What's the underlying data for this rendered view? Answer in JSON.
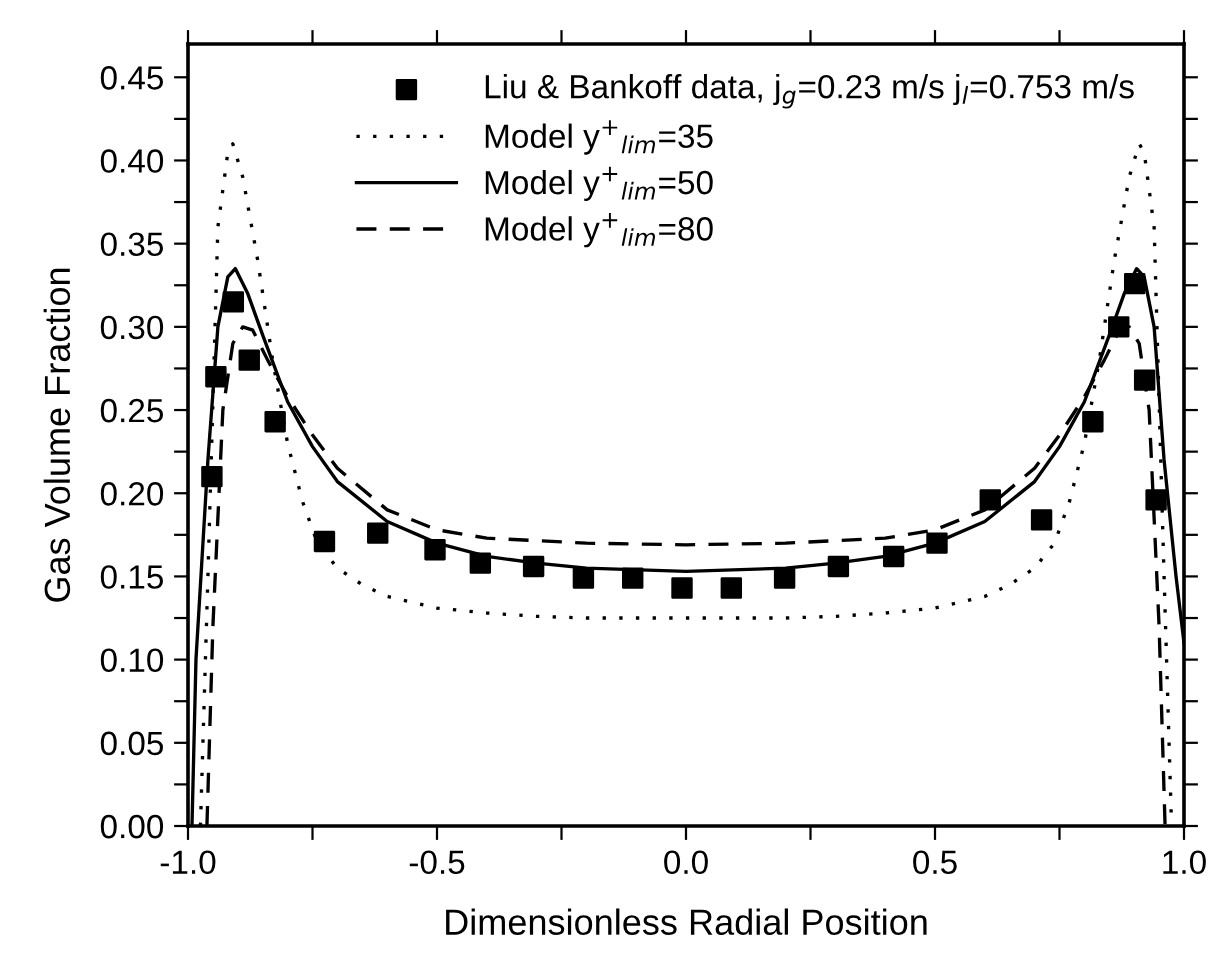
{
  "chart_data": {
    "type": "scatter",
    "xlabel": "Dimensionless Radial Position",
    "ylabel": "Gas Volume Fraction",
    "xlim": [
      -1.0,
      1.0
    ],
    "ylim": [
      0.0,
      0.47
    ],
    "xticks": [
      {
        "value": -1.0,
        "label": "-1.0"
      },
      {
        "value": -0.75,
        "label": null
      },
      {
        "value": -0.5,
        "label": "-0.5"
      },
      {
        "value": -0.25,
        "label": null
      },
      {
        "value": 0.0,
        "label": "0.0"
      },
      {
        "value": 0.25,
        "label": null
      },
      {
        "value": 0.5,
        "label": "0.5"
      },
      {
        "value": 0.75,
        "label": null
      },
      {
        "value": 1.0,
        "label": "1.0"
      }
    ],
    "yticks": [
      {
        "value": 0.0,
        "label": "0.00"
      },
      {
        "value": 0.025,
        "label": null
      },
      {
        "value": 0.05,
        "label": "0.05"
      },
      {
        "value": 0.075,
        "label": null
      },
      {
        "value": 0.1,
        "label": "0.10"
      },
      {
        "value": 0.125,
        "label": null
      },
      {
        "value": 0.15,
        "label": "0.15"
      },
      {
        "value": 0.175,
        "label": null
      },
      {
        "value": 0.2,
        "label": "0.20"
      },
      {
        "value": 0.225,
        "label": null
      },
      {
        "value": 0.25,
        "label": "0.25"
      },
      {
        "value": 0.275,
        "label": null
      },
      {
        "value": 0.3,
        "label": "0.30"
      },
      {
        "value": 0.325,
        "label": null
      },
      {
        "value": 0.35,
        "label": "0.35"
      },
      {
        "value": 0.375,
        "label": null
      },
      {
        "value": 0.4,
        "label": "0.40"
      },
      {
        "value": 0.425,
        "label": null
      },
      {
        "value": 0.45,
        "label": "0.45"
      }
    ],
    "grid": false,
    "legend": "top",
    "series": [
      {
        "name": "Liu & Bankoff data, j$_{g}$=0.23 m/s j$_{l}$=0.753 m/s",
        "marker": "square",
        "color": "#000000",
        "x": [
          -0.952,
          -0.944,
          -0.909,
          -0.877,
          -0.825,
          -0.726,
          -0.619,
          -0.504,
          -0.413,
          -0.306,
          -0.206,
          -0.107,
          -0.008,
          0.091,
          0.198,
          0.306,
          0.417,
          0.504,
          0.611,
          0.714,
          0.817,
          0.869,
          0.901,
          0.921,
          0.944
        ],
        "values": [
          0.21,
          0.27,
          0.315,
          0.28,
          0.243,
          0.171,
          0.176,
          0.166,
          0.158,
          0.156,
          0.149,
          0.149,
          0.143,
          0.143,
          0.149,
          0.156,
          0.162,
          0.17,
          0.196,
          0.184,
          0.243,
          0.3,
          0.326,
          0.268,
          0.196
        ]
      },
      {
        "name": "Model y$^{+}$$_{lim}$=35",
        "type": "line",
        "line_style": "dotted",
        "marker": "none",
        "color": "#000000",
        "x": [
          -0.975,
          -0.96,
          -0.94,
          -0.92,
          -0.91,
          -0.89,
          -0.86,
          -0.83,
          -0.8,
          -0.77,
          -0.74,
          -0.7,
          -0.65,
          -0.6,
          -0.5,
          -0.4,
          -0.3,
          -0.2,
          0.0,
          0.2,
          0.3,
          0.4,
          0.5,
          0.6,
          0.65,
          0.7,
          0.74,
          0.77,
          0.8,
          0.83,
          0.86,
          0.89,
          0.91,
          0.92,
          0.94,
          0.96,
          0.975
        ],
        "values": [
          0.0,
          0.15,
          0.36,
          0.405,
          0.41,
          0.39,
          0.34,
          0.28,
          0.23,
          0.195,
          0.17,
          0.155,
          0.145,
          0.138,
          0.131,
          0.128,
          0.126,
          0.125,
          0.125,
          0.125,
          0.126,
          0.128,
          0.131,
          0.138,
          0.145,
          0.155,
          0.17,
          0.195,
          0.23,
          0.28,
          0.34,
          0.39,
          0.41,
          0.405,
          0.36,
          0.15,
          0.0
        ]
      },
      {
        "name": "Model y$^{+}$$_{lim}$=50",
        "type": "line",
        "line_style": "solid",
        "marker": "none",
        "color": "#000000",
        "x": [
          -0.992,
          -0.984,
          -0.96,
          -0.94,
          -0.92,
          -0.905,
          -0.88,
          -0.85,
          -0.8,
          -0.75,
          -0.7,
          -0.6,
          -0.5,
          -0.4,
          -0.3,
          -0.2,
          0.0,
          0.2,
          0.3,
          0.4,
          0.5,
          0.6,
          0.7,
          0.75,
          0.8,
          0.85,
          0.88,
          0.905,
          0.92,
          0.94,
          0.96,
          0.984,
          1.0
        ],
        "values": [
          0.0,
          0.1,
          0.22,
          0.3,
          0.33,
          0.335,
          0.32,
          0.295,
          0.255,
          0.228,
          0.207,
          0.183,
          0.17,
          0.162,
          0.158,
          0.155,
          0.153,
          0.155,
          0.158,
          0.162,
          0.17,
          0.183,
          0.207,
          0.228,
          0.255,
          0.295,
          0.32,
          0.335,
          0.33,
          0.3,
          0.22,
          0.15,
          0.11
        ]
      },
      {
        "name": "Model y$^{+}$$_{lim}$=80",
        "type": "line",
        "line_style": "dashed",
        "marker": "none",
        "color": "#000000",
        "x": [
          -0.962,
          -0.95,
          -0.93,
          -0.91,
          -0.89,
          -0.87,
          -0.84,
          -0.8,
          -0.75,
          -0.7,
          -0.6,
          -0.5,
          -0.4,
          -0.2,
          0.0,
          0.2,
          0.4,
          0.5,
          0.6,
          0.7,
          0.75,
          0.8,
          0.84,
          0.87,
          0.89,
          0.91,
          0.93,
          0.95,
          0.962
        ],
        "values": [
          0.0,
          0.12,
          0.25,
          0.29,
          0.3,
          0.298,
          0.28,
          0.258,
          0.235,
          0.215,
          0.19,
          0.178,
          0.173,
          0.17,
          0.169,
          0.17,
          0.173,
          0.178,
          0.19,
          0.215,
          0.235,
          0.258,
          0.28,
          0.298,
          0.3,
          0.29,
          0.25,
          0.12,
          0.0
        ]
      }
    ]
  }
}
